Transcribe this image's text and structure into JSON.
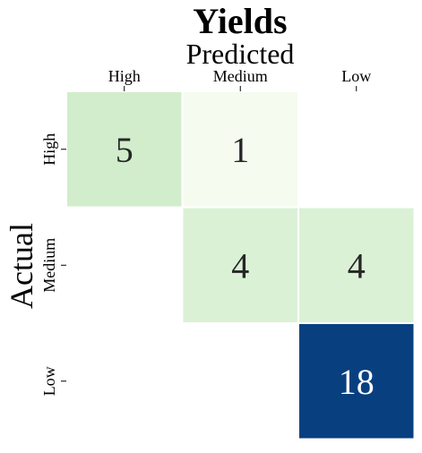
{
  "chart_data": {
    "type": "heatmap",
    "title": "Yields",
    "xlabel": "Predicted",
    "ylabel": "Actual",
    "x_categories": [
      "High",
      "Medium",
      "Low"
    ],
    "y_categories": [
      "High",
      "Medium",
      "Low"
    ],
    "values": [
      [
        5,
        1,
        0
      ],
      [
        0,
        4,
        4
      ],
      [
        0,
        0,
        18
      ]
    ],
    "show_zero_labels": false,
    "colormap": "Blues/Greens sequential",
    "cell_colors": [
      [
        "#d1edcc",
        "#f5fbef",
        "#ffffff"
      ],
      [
        "#ffffff",
        "#dbf1d6",
        "#dbf1d6"
      ],
      [
        "#ffffff",
        "#ffffff",
        "#08407f"
      ]
    ],
    "text_colors": {
      "light_cell": "#262626",
      "dark_cell": "#ffffff"
    },
    "grid": false,
    "legend": "none"
  }
}
